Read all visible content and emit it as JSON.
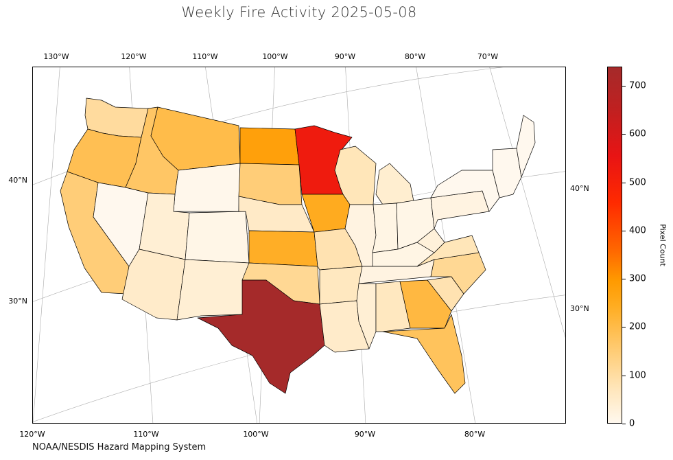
{
  "title": "Weekly Fire Activity 2025-05-08",
  "credit": "NOAA/NESDIS Hazard Mapping System",
  "colorbar": {
    "label": "Pixel Count",
    "ticks": [
      "0",
      "100",
      "200",
      "300",
      "400",
      "500",
      "600",
      "700"
    ],
    "min": 0,
    "max": 740,
    "colors": [
      "#fff8ee",
      "#ffe5b8",
      "#ffc86a",
      "#ffac20",
      "#ff9a00",
      "#ff6a00",
      "#ff2a00",
      "#e81414",
      "#c02020",
      "#a52a2a"
    ]
  },
  "axes": {
    "top_lon": [
      "130°W",
      "120°W",
      "110°W",
      "100°W",
      "90°W",
      "80°W",
      "70°W"
    ],
    "bottom_lon": [
      "120°W",
      "110°W",
      "100°W",
      "90°W",
      "80°W"
    ],
    "left_lat": [
      "40°N",
      "30°N"
    ],
    "right_lat": [
      "40°N",
      "30°N"
    ]
  },
  "chart_data": {
    "type": "choropleth",
    "value_label": "Pixel Count",
    "regions": [
      {
        "name": "Washington",
        "value": 110
      },
      {
        "name": "Oregon",
        "value": 190
      },
      {
        "name": "California",
        "value": 150
      },
      {
        "name": "Nevada",
        "value": 0
      },
      {
        "name": "Idaho",
        "value": 170
      },
      {
        "name": "Montana",
        "value": 200
      },
      {
        "name": "Wyoming",
        "value": 5
      },
      {
        "name": "Utah",
        "value": 40
      },
      {
        "name": "Colorado",
        "value": 10
      },
      {
        "name": "Arizona",
        "value": 55
      },
      {
        "name": "New Mexico",
        "value": 40
      },
      {
        "name": "North Dakota",
        "value": 300
      },
      {
        "name": "South Dakota",
        "value": 150
      },
      {
        "name": "Nebraska",
        "value": 60
      },
      {
        "name": "Kansas",
        "value": 240
      },
      {
        "name": "Oklahoma",
        "value": 120
      },
      {
        "name": "Texas",
        "value": 740
      },
      {
        "name": "Minnesota",
        "value": 550
      },
      {
        "name": "Iowa",
        "value": 250
      },
      {
        "name": "Missouri",
        "value": 90
      },
      {
        "name": "Arkansas",
        "value": 70
      },
      {
        "name": "Louisiana",
        "value": 55
      },
      {
        "name": "Wisconsin",
        "value": 80
      },
      {
        "name": "Michigan",
        "value": 45
      },
      {
        "name": "Illinois",
        "value": 20
      },
      {
        "name": "Indiana",
        "value": 15
      },
      {
        "name": "Ohio",
        "value": 10
      },
      {
        "name": "Kentucky",
        "value": 15
      },
      {
        "name": "Tennessee",
        "value": 20
      },
      {
        "name": "Mississippi",
        "value": 40
      },
      {
        "name": "Alabama",
        "value": 70
      },
      {
        "name": "Georgia",
        "value": 210
      },
      {
        "name": "Florida",
        "value": 180
      },
      {
        "name": "South Carolina",
        "value": 90
      },
      {
        "name": "North Carolina",
        "value": 120
      },
      {
        "name": "Virginia",
        "value": 80
      },
      {
        "name": "West Virginia",
        "value": 30
      },
      {
        "name": "Pennsylvania",
        "value": 20
      },
      {
        "name": "New York",
        "value": 0
      },
      {
        "name": "New England",
        "value": 0
      },
      {
        "name": "Maine",
        "value": 0
      }
    ]
  }
}
